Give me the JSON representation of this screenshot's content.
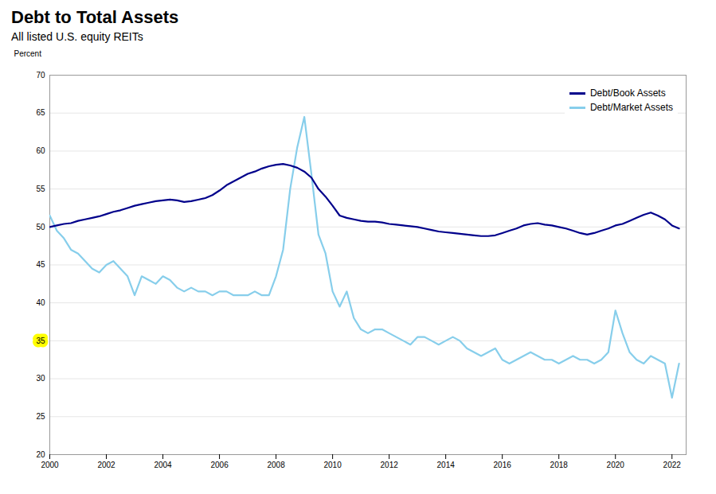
{
  "chart_data": {
    "type": "line",
    "title": "Debt to Total Assets",
    "subtitle": "All listed U.S. equity REITs",
    "ylabel": "Percent",
    "x": [
      2000.0,
      2000.25,
      2000.5,
      2000.75,
      2001.0,
      2001.25,
      2001.5,
      2001.75,
      2002.0,
      2002.25,
      2002.5,
      2002.75,
      2003.0,
      2003.25,
      2003.5,
      2003.75,
      2004.0,
      2004.25,
      2004.5,
      2004.75,
      2005.0,
      2005.25,
      2005.5,
      2005.75,
      2006.0,
      2006.25,
      2006.5,
      2006.75,
      2007.0,
      2007.25,
      2007.5,
      2007.75,
      2008.0,
      2008.25,
      2008.5,
      2008.75,
      2009.0,
      2009.25,
      2009.5,
      2009.75,
      2010.0,
      2010.25,
      2010.5,
      2010.75,
      2011.0,
      2011.25,
      2011.5,
      2011.75,
      2012.0,
      2012.25,
      2012.5,
      2012.75,
      2013.0,
      2013.25,
      2013.5,
      2013.75,
      2014.0,
      2014.25,
      2014.5,
      2014.75,
      2015.0,
      2015.25,
      2015.5,
      2015.75,
      2016.0,
      2016.25,
      2016.5,
      2016.75,
      2017.0,
      2017.25,
      2017.5,
      2017.75,
      2018.0,
      2018.25,
      2018.5,
      2018.75,
      2019.0,
      2019.25,
      2019.5,
      2019.75,
      2020.0,
      2020.25,
      2020.5,
      2020.75,
      2021.0,
      2021.25,
      2021.5,
      2021.75,
      2022.0,
      2022.25
    ],
    "series": [
      {
        "name": "Debt/Book Assets",
        "color": "#00008B",
        "values": [
          50.0,
          50.2,
          50.4,
          50.5,
          50.8,
          51.0,
          51.2,
          51.4,
          51.7,
          52.0,
          52.2,
          52.5,
          52.8,
          53.0,
          53.2,
          53.4,
          53.5,
          53.6,
          53.5,
          53.3,
          53.4,
          53.6,
          53.8,
          54.2,
          54.8,
          55.5,
          56.0,
          56.5,
          57.0,
          57.3,
          57.7,
          58.0,
          58.2,
          58.3,
          58.1,
          57.8,
          57.3,
          56.5,
          55.0,
          54.0,
          52.8,
          51.5,
          51.2,
          51.0,
          50.8,
          50.7,
          50.7,
          50.6,
          50.4,
          50.3,
          50.2,
          50.1,
          50.0,
          49.8,
          49.6,
          49.4,
          49.3,
          49.2,
          49.1,
          49.0,
          48.9,
          48.8,
          48.8,
          48.9,
          49.2,
          49.5,
          49.8,
          50.2,
          50.4,
          50.5,
          50.3,
          50.2,
          50.0,
          49.8,
          49.5,
          49.2,
          49.0,
          49.2,
          49.5,
          49.8,
          50.2,
          50.4,
          50.8,
          51.2,
          51.6,
          51.9,
          51.5,
          51.0,
          50.2,
          49.8
        ]
      },
      {
        "name": "Debt/Market Assets",
        "color": "#87CEEB",
        "values": [
          51.5,
          49.5,
          48.5,
          47.0,
          46.5,
          45.5,
          44.5,
          44.0,
          45.0,
          45.5,
          44.5,
          43.5,
          41.0,
          43.5,
          43.0,
          42.5,
          43.5,
          43.0,
          42.0,
          41.5,
          42.0,
          41.5,
          41.5,
          41.0,
          41.5,
          41.5,
          41.0,
          41.0,
          41.0,
          41.5,
          41.0,
          41.0,
          43.5,
          47.0,
          55.0,
          60.5,
          64.5,
          57.0,
          49.0,
          46.5,
          41.5,
          39.5,
          41.5,
          38.0,
          36.5,
          36.0,
          36.5,
          36.5,
          36.0,
          35.5,
          35.0,
          34.5,
          35.5,
          35.5,
          35.0,
          34.5,
          35.0,
          35.5,
          35.0,
          34.0,
          33.5,
          33.0,
          33.5,
          34.0,
          32.5,
          32.0,
          32.5,
          33.0,
          33.5,
          33.0,
          32.5,
          32.5,
          32.0,
          32.5,
          33.0,
          32.5,
          32.5,
          32.0,
          32.5,
          33.5,
          39.0,
          36.0,
          33.5,
          32.5,
          32.0,
          33.0,
          32.5,
          32.0,
          27.5,
          32.0
        ]
      }
    ],
    "xlim": [
      2000,
      2022.5
    ],
    "ylim": [
      20,
      70
    ],
    "xticks": [
      2000,
      2002,
      2004,
      2006,
      2008,
      2010,
      2012,
      2014,
      2016,
      2018,
      2020,
      2022
    ],
    "yticks": [
      20,
      25,
      30,
      35,
      40,
      45,
      50,
      55,
      60,
      65,
      70
    ],
    "grid": true,
    "legend": "upper right",
    "annotations": [
      {
        "text": "35",
        "x": 2000,
        "y": 35,
        "color": "#FFFF00"
      }
    ]
  }
}
